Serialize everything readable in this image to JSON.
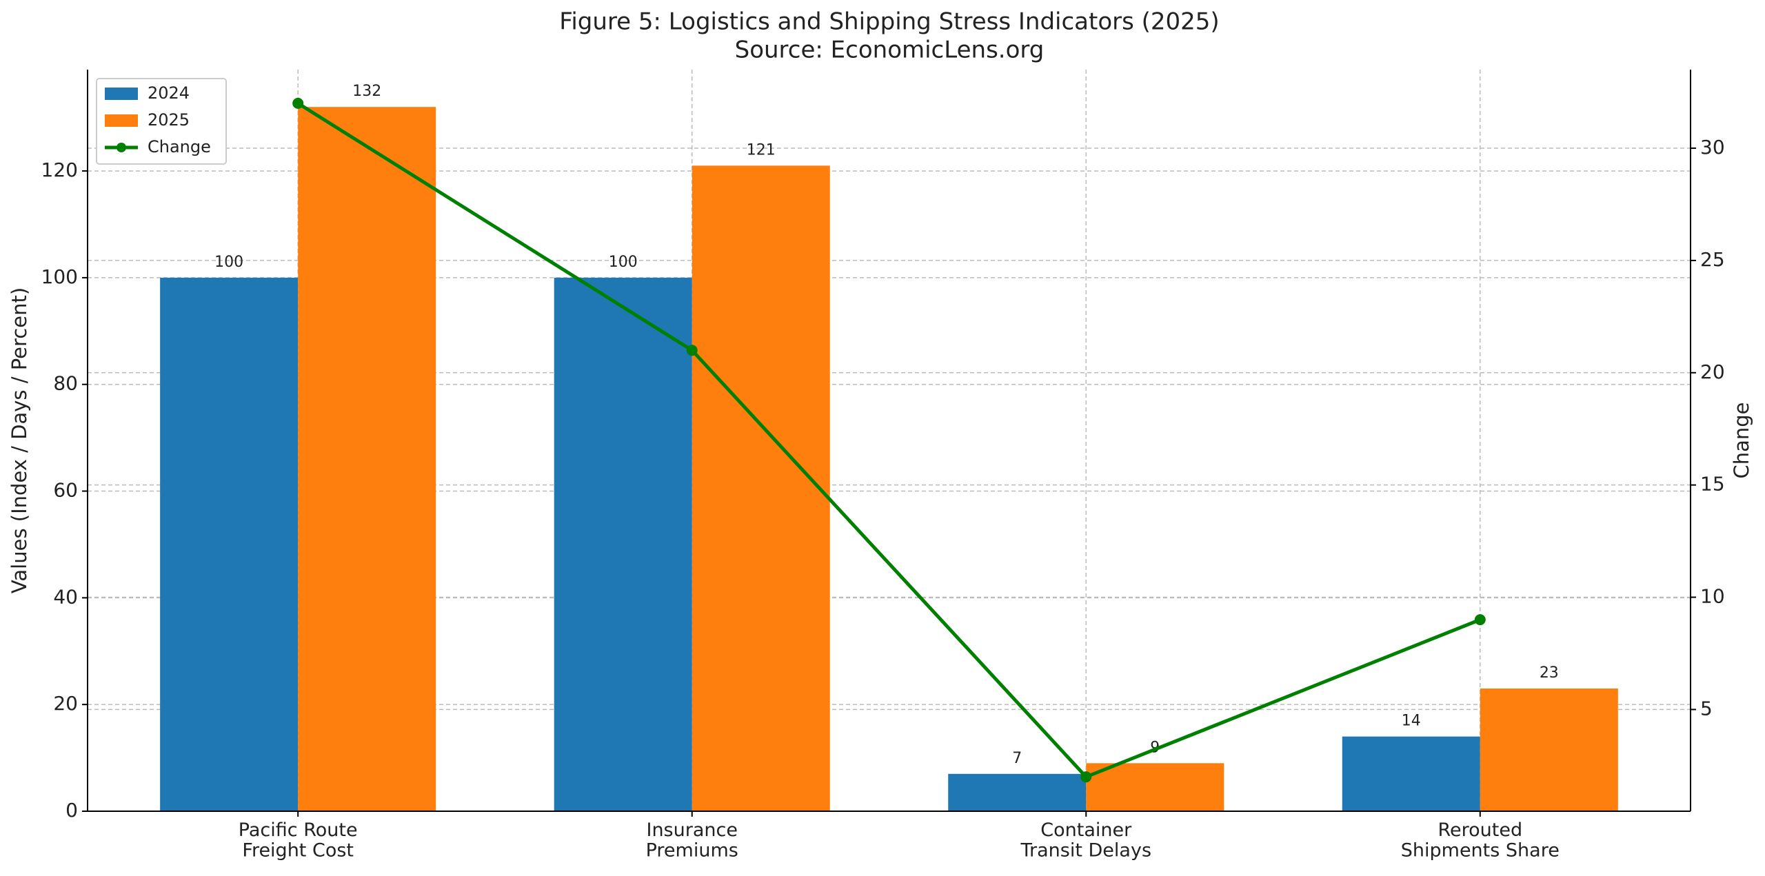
{
  "chart_data": {
    "type": "bar_line",
    "title": "Figure 5: Logistics and Shipping Stress Indicators (2025)",
    "subtitle": "Source: EconomicLens.org",
    "y_label": "Values (Index / Days / Percent)",
    "y2_label": "Change",
    "categories": [
      "Pacific Route\nFreight Cost",
      "Insurance\nPremiums",
      "Container\nTransit Delays",
      "Rerouted\nShipments Share"
    ],
    "series": [
      {
        "name": "2024",
        "color": "#1f77b4",
        "type": "bar",
        "values": [
          100,
          100,
          7,
          14
        ]
      },
      {
        "name": "2025",
        "color": "#ff7f0e",
        "type": "bar",
        "values": [
          132,
          121,
          9,
          23
        ]
      },
      {
        "name": "Change",
        "color": "#008000",
        "type": "line",
        "axis": "y2",
        "values": [
          32,
          21,
          2,
          9
        ]
      }
    ],
    "ylim": [
      0,
      139
    ],
    "yticks": [
      0,
      20,
      40,
      60,
      80,
      100,
      120
    ],
    "y2lim": [
      0.47,
      33.5
    ],
    "y2ticks": [
      5,
      10,
      15,
      20,
      25,
      30
    ],
    "grid": true,
    "legend": "upper-left"
  }
}
